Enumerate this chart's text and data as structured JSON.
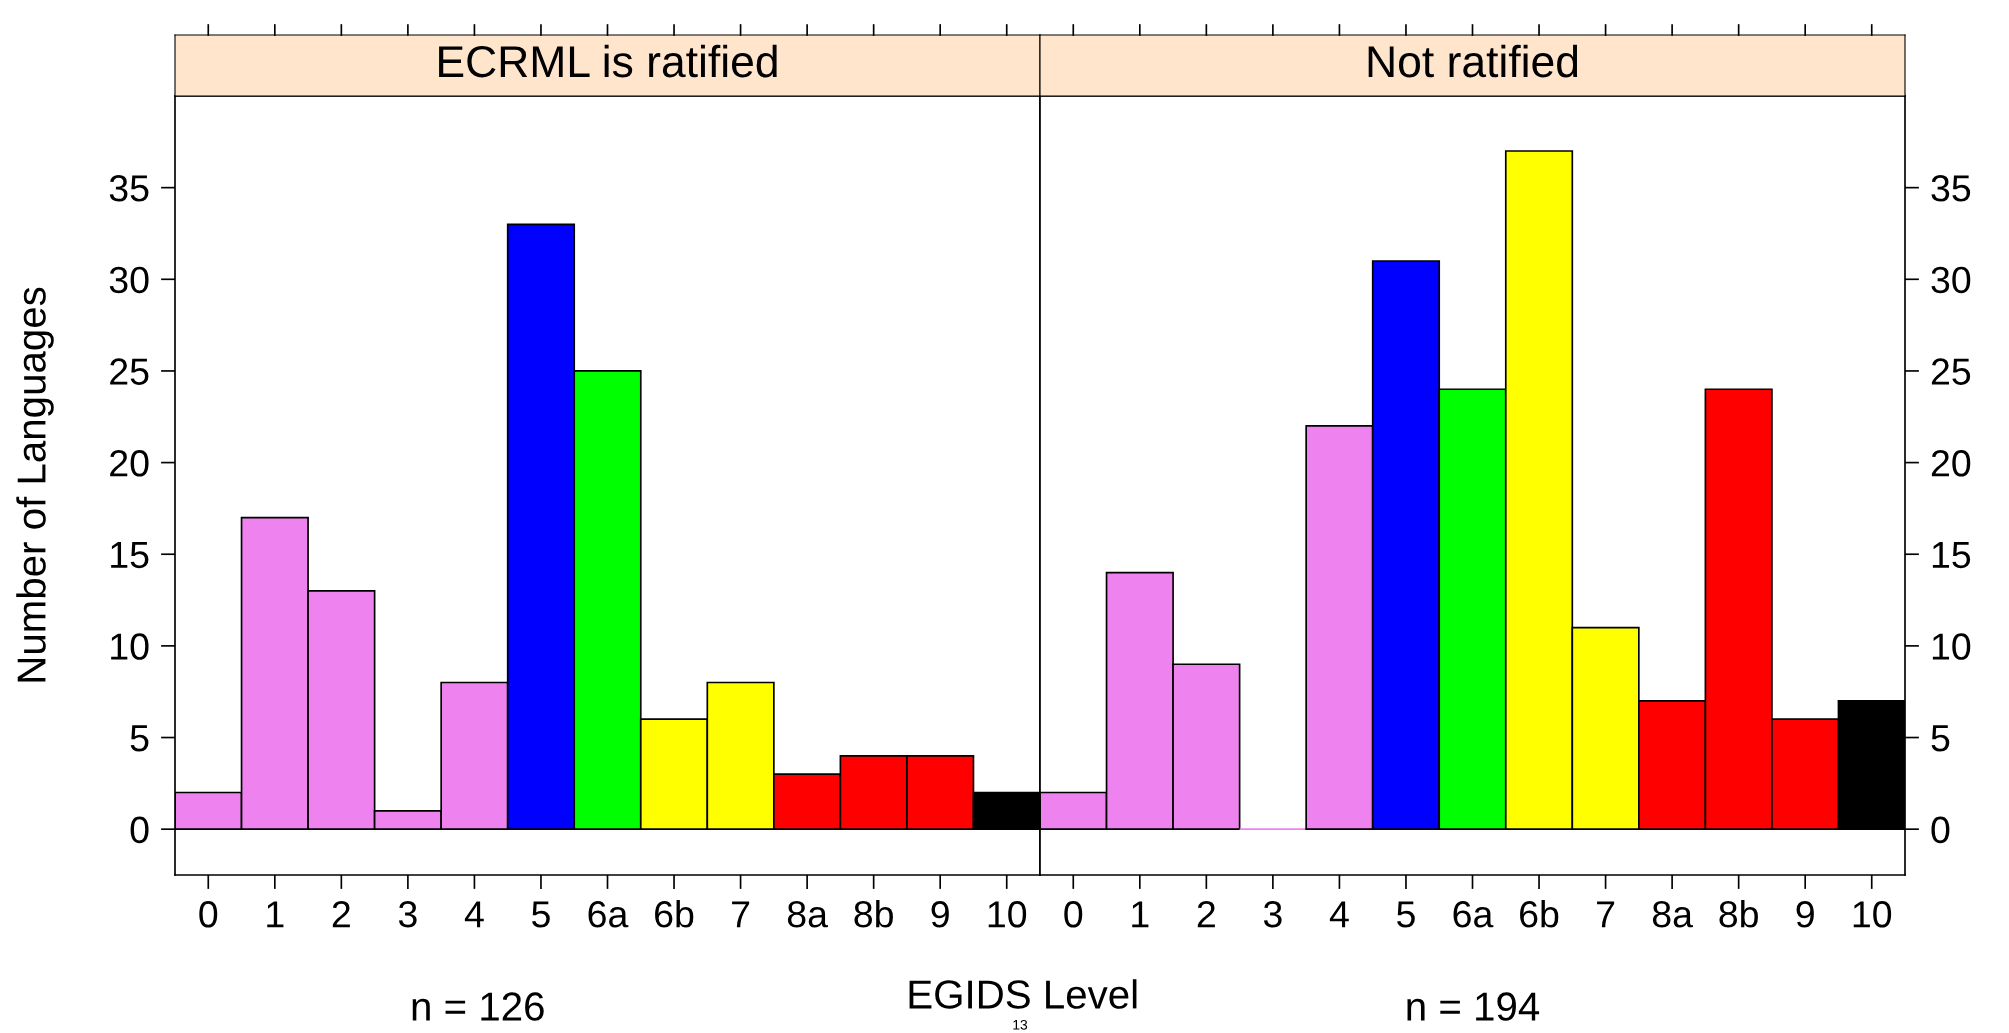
{
  "chart_data": [
    {
      "type": "bar",
      "title": "ECRML is ratified",
      "xlabel": "EGIDS Level",
      "ylabel": "Number of Languages",
      "categories": [
        "0",
        "1",
        "2",
        "3",
        "4",
        "5",
        "6a",
        "6b",
        "7",
        "8a",
        "8b",
        "9",
        "10"
      ],
      "values": [
        2,
        17,
        13,
        1,
        8,
        33,
        25,
        6,
        8,
        3,
        4,
        4,
        2
      ],
      "colors": [
        "#ee82ee",
        "#ee82ee",
        "#ee82ee",
        "#ee82ee",
        "#ee82ee",
        "#0000ff",
        "#00ff00",
        "#ffff00",
        "#ffff00",
        "#ff0000",
        "#ff0000",
        "#ff0000",
        "#000000"
      ],
      "ylim": [
        -2.5,
        40
      ],
      "yticks": [
        0,
        5,
        10,
        15,
        20,
        25,
        30,
        35
      ],
      "grid": false,
      "annotations": [
        "n = 126",
        "13"
      ]
    },
    {
      "type": "bar",
      "title": "Not ratified",
      "categories": [
        "0",
        "1",
        "2",
        "3",
        "4",
        "5",
        "6a",
        "6b",
        "7",
        "8a",
        "8b",
        "9",
        "10"
      ],
      "values": [
        2,
        14,
        9,
        0,
        22,
        31,
        24,
        37,
        11,
        7,
        24,
        6,
        7
      ],
      "colors": [
        "#ee82ee",
        "#ee82ee",
        "#ee82ee",
        "#ee82ee",
        "#ee82ee",
        "#0000ff",
        "#00ff00",
        "#ffff00",
        "#ffff00",
        "#ff0000",
        "#ff0000",
        "#ff0000",
        "#000000"
      ],
      "ylim": [
        -2.5,
        40
      ],
      "yticks": [
        0,
        5,
        10,
        15,
        20,
        25,
        30,
        35
      ],
      "grid": false,
      "annotations": [
        "n = 194"
      ]
    }
  ]
}
